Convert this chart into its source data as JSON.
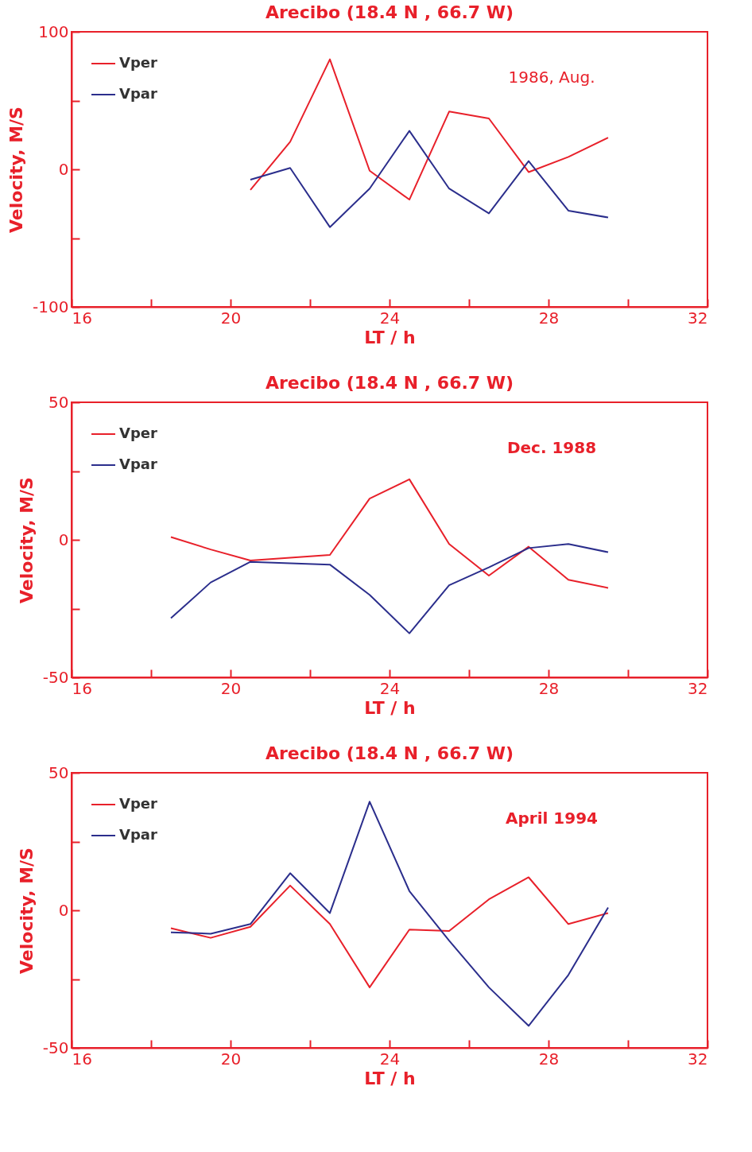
{
  "chart_data": [
    {
      "type": "line",
      "title": "Arecibo (18.4 N , 66.7 W)",
      "xlabel": "LT / h",
      "ylabel": "Velocity, M/S",
      "annotations": [
        "1986, Aug."
      ],
      "x": [
        20.5,
        21.5,
        22.5,
        23.5,
        24.5,
        25.5,
        26.5,
        27.5,
        28.5,
        29.5
      ],
      "series": [
        {
          "name": "Vper",
          "color": "#e8202a",
          "values": [
            -15,
            20,
            80,
            -1,
            -22,
            42,
            37,
            -2,
            9,
            23
          ]
        },
        {
          "name": "Vpar",
          "color": "#2b2e8c",
          "values": [
            -7.5,
            1,
            -42,
            -14,
            28,
            -14,
            -32,
            6,
            -30,
            -35
          ]
        }
      ],
      "xlim": [
        16,
        32
      ],
      "xticks": [
        16,
        {
          "value": 18,
          "label": null
        },
        20,
        {
          "value": 22,
          "label": null
        },
        24,
        {
          "value": 26,
          "label": null
        },
        28,
        {
          "value": 30,
          "label": null
        },
        32
      ],
      "ylim": [
        -100,
        100
      ],
      "yticks": [
        -100,
        {
          "value": -50,
          "label": null
        },
        0,
        {
          "value": 50,
          "label": null
        },
        100
      ],
      "legend": "top left",
      "grid": false,
      "marker": "none"
    },
    {
      "type": "line",
      "title": "Arecibo (18.4 N , 66.7 W)",
      "xlabel": "LT / h",
      "ylabel": "Velocity, M/S",
      "annotations": [
        "Dec. 1988"
      ],
      "x": [
        18.5,
        19.5,
        20.5,
        21.5,
        22.5,
        23.5,
        24.5,
        25.5,
        26.5,
        27.5,
        28.5,
        29.5
      ],
      "series": [
        {
          "name": "Vper",
          "color": "#e8202a",
          "values": [
            1,
            -3.5,
            -7.5,
            -6.5,
            -5.5,
            15,
            22,
            -1.5,
            -13,
            -2.5,
            -14.5,
            -17.5
          ]
        },
        {
          "name": "Vpar",
          "color": "#2b2e8c",
          "values": [
            -28.5,
            -15.5,
            -8,
            -8.5,
            -9,
            -20,
            -34,
            -16.5,
            -10,
            -3,
            -1.5,
            -4.5
          ]
        }
      ],
      "xlim": [
        16,
        32
      ],
      "xticks": [
        16,
        {
          "value": 18,
          "label": null
        },
        20,
        {
          "value": 22,
          "label": null
        },
        24,
        {
          "value": 26,
          "label": null
        },
        28,
        {
          "value": 30,
          "label": null
        },
        32
      ],
      "ylim": [
        -50,
        50
      ],
      "yticks": [
        -50,
        {
          "value": -25,
          "label": null
        },
        0,
        {
          "value": 25,
          "label": null
        },
        50
      ],
      "legend": "top left",
      "grid": false,
      "marker": "none"
    },
    {
      "type": "line",
      "title": "Arecibo (18.4 N , 66.7 W)",
      "xlabel": "LT / h",
      "ylabel": "Velocity, M/S",
      "annotations": [
        "April 1994"
      ],
      "x": [
        18.5,
        19.5,
        20.5,
        21.5,
        22.5,
        23.5,
        24.5,
        25.5,
        26.5,
        27.5,
        28.5,
        29.5
      ],
      "series": [
        {
          "name": "Vper",
          "color": "#e8202a",
          "values": [
            -6.5,
            -10,
            -6,
            9,
            -5,
            -28,
            -7,
            -7.5,
            4,
            12,
            -5,
            -1
          ]
        },
        {
          "name": "Vpar",
          "color": "#2b2e8c",
          "values": [
            -8,
            -8.5,
            -5,
            13.5,
            -1,
            39.5,
            7,
            -11,
            -28,
            -42,
            -23.5,
            1
          ]
        }
      ],
      "xlim": [
        16,
        32
      ],
      "xticks": [
        16,
        {
          "value": 18,
          "label": null
        },
        20,
        {
          "value": 22,
          "label": null
        },
        24,
        {
          "value": 26,
          "label": null
        },
        28,
        {
          "value": 30,
          "label": null
        },
        32
      ],
      "ylim": [
        -50,
        50
      ],
      "yticks": [
        -50,
        {
          "value": -25,
          "label": null
        },
        0,
        {
          "value": 25,
          "label": null
        },
        50
      ],
      "legend": "top left",
      "grid": false,
      "marker": "none"
    }
  ]
}
